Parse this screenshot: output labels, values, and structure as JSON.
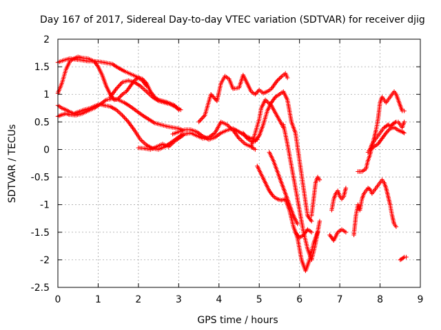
{
  "chart_data": {
    "type": "scatter",
    "title": "Day 167 of 2017, Sidereal Day-to-day VTEC variation (SDTVAR) for receiver djig",
    "xlabel": "GPS time / hours",
    "ylabel": "SDTVAR / TECUs",
    "xlim": [
      0,
      9
    ],
    "ylim": [
      -2.5,
      2
    ],
    "xticks": [
      0,
      1,
      2,
      3,
      4,
      5,
      6,
      7,
      8,
      9
    ],
    "yticks": [
      -2.5,
      -2,
      -1.5,
      -1,
      -0.5,
      0,
      0.5,
      1,
      1.5,
      2
    ],
    "grid": true,
    "marker": "+",
    "color": "#ff0000",
    "series": [
      {
        "x": [
          0.0,
          0.15,
          0.3,
          0.45,
          0.6,
          0.75,
          0.9,
          1.05,
          1.2,
          1.35,
          1.5,
          1.65,
          1.8,
          1.95,
          2.1,
          2.2,
          2.3,
          2.4,
          2.5,
          2.6,
          2.7,
          2.8,
          2.9,
          3.0
        ],
        "y": [
          1.58,
          1.62,
          1.65,
          1.63,
          1.62,
          1.6,
          1.6,
          1.59,
          1.57,
          1.55,
          1.48,
          1.42,
          1.37,
          1.32,
          1.28,
          1.2,
          1.05,
          0.95,
          0.9,
          0.88,
          0.86,
          0.83,
          0.8,
          0.72
        ]
      },
      {
        "x": [
          0.0,
          0.1,
          0.2,
          0.3,
          0.4,
          0.5,
          0.6,
          0.75,
          0.9,
          1.0,
          1.1,
          1.2,
          1.3,
          1.4,
          1.5,
          1.6,
          1.7,
          1.8,
          1.9,
          2.0,
          2.1,
          2.2
        ],
        "y": [
          1.02,
          1.2,
          1.45,
          1.6,
          1.65,
          1.68,
          1.66,
          1.65,
          1.6,
          1.5,
          1.35,
          1.15,
          1.0,
          0.9,
          0.92,
          1.0,
          1.05,
          1.15,
          1.25,
          1.3,
          1.25,
          1.15
        ]
      },
      {
        "x": [
          0.0,
          0.1,
          0.2,
          0.3,
          0.4,
          0.5,
          0.65,
          0.8,
          0.95,
          1.05,
          1.15,
          1.3,
          1.45,
          1.6,
          1.75,
          1.9,
          2.05,
          2.2,
          2.35,
          2.5,
          2.65,
          2.8,
          2.95,
          3.1
        ],
        "y": [
          0.8,
          0.75,
          0.72,
          0.68,
          0.65,
          0.68,
          0.72,
          0.75,
          0.8,
          0.82,
          0.8,
          0.78,
          0.72,
          0.62,
          0.5,
          0.35,
          0.18,
          0.08,
          0.02,
          0.0,
          0.05,
          0.12,
          0.2,
          0.28
        ]
      },
      {
        "x": [
          0.0,
          0.1,
          0.2,
          0.3,
          0.45,
          0.6,
          0.75,
          0.9,
          1.05,
          1.2,
          1.35,
          1.5,
          1.65,
          1.8,
          1.95,
          2.1,
          2.25,
          2.4,
          2.55,
          2.7,
          2.85,
          3.0,
          3.1
        ],
        "y": [
          0.6,
          0.63,
          0.65,
          0.63,
          0.62,
          0.65,
          0.7,
          0.75,
          0.82,
          0.9,
          0.92,
          0.9,
          0.85,
          0.78,
          0.7,
          0.62,
          0.55,
          0.48,
          0.45,
          0.42,
          0.4,
          0.38,
          0.35
        ]
      },
      {
        "x": [
          1.3,
          1.45,
          1.6,
          1.75,
          1.9,
          2.05,
          2.2,
          2.35,
          2.5,
          2.65,
          2.8,
          2.95,
          3.05
        ],
        "y": [
          0.95,
          1.1,
          1.22,
          1.25,
          1.22,
          1.15,
          1.05,
          0.95,
          0.88,
          0.85,
          0.82,
          0.76,
          0.72
        ]
      },
      {
        "x": [
          2.0,
          2.15,
          2.3,
          2.45,
          2.6,
          2.75,
          2.9,
          3.0,
          3.15,
          3.3,
          3.45,
          3.6,
          3.75,
          3.9,
          4.05,
          4.2,
          4.35,
          4.5,
          4.65,
          4.8,
          4.9
        ],
        "y": [
          0.03,
          0.02,
          0.0,
          0.05,
          0.1,
          0.05,
          0.15,
          0.2,
          0.28,
          0.3,
          0.25,
          0.2,
          0.22,
          0.3,
          0.5,
          0.45,
          0.35,
          0.2,
          0.1,
          0.05,
          0.0
        ]
      },
      {
        "x": [
          2.85,
          3.0,
          3.15,
          3.3,
          3.45,
          3.6,
          3.75,
          3.9,
          4.05,
          4.2,
          4.35,
          4.5,
          4.65,
          4.8,
          4.95
        ],
        "y": [
          0.28,
          0.32,
          0.36,
          0.36,
          0.32,
          0.24,
          0.18,
          0.22,
          0.3,
          0.35,
          0.38,
          0.32,
          0.25,
          0.2,
          0.18
        ]
      },
      {
        "x": [
          3.5,
          3.65,
          3.8,
          3.95,
          4.05,
          4.15,
          4.25,
          4.35,
          4.5,
          4.6,
          4.7,
          4.8,
          4.9,
          5.0,
          5.1,
          5.2,
          5.3,
          5.45,
          5.55,
          5.65,
          5.7
        ],
        "y": [
          0.5,
          0.62,
          1.0,
          0.88,
          1.2,
          1.33,
          1.28,
          1.1,
          1.12,
          1.35,
          1.2,
          1.05,
          1.0,
          1.08,
          1.02,
          1.05,
          1.1,
          1.25,
          1.32,
          1.38,
          1.3
        ]
      },
      {
        "x": [
          4.6,
          4.7,
          4.8,
          4.9,
          5.0,
          5.1,
          5.2,
          5.3,
          5.4,
          5.5,
          5.6,
          5.7,
          5.8,
          5.9,
          6.0,
          6.1,
          6.2,
          6.3
        ],
        "y": [
          0.3,
          0.2,
          0.15,
          0.15,
          0.25,
          0.45,
          0.7,
          0.85,
          0.95,
          1.0,
          1.05,
          0.9,
          0.5,
          0.3,
          -0.2,
          -0.7,
          -1.2,
          -1.3
        ]
      },
      {
        "x": [
          4.8,
          4.9,
          5.0,
          5.05,
          5.15,
          5.3,
          5.45,
          5.6
        ],
        "y": [
          0.05,
          0.3,
          0.55,
          0.75,
          0.9,
          0.8,
          0.6,
          0.4
        ]
      },
      {
        "x": [
          4.95,
          5.05,
          5.15,
          5.25,
          5.35,
          5.45,
          5.55,
          5.65,
          5.75,
          5.85,
          5.95,
          6.05,
          6.15,
          6.25,
          6.35,
          6.45
        ],
        "y": [
          -0.3,
          -0.45,
          -0.6,
          -0.75,
          -0.85,
          -0.9,
          -0.92,
          -0.9,
          -1.1,
          -1.4,
          -1.6,
          -2.0,
          -2.2,
          -2.0,
          -1.7,
          -1.5
        ]
      },
      {
        "x": [
          5.25,
          5.35,
          5.45,
          5.55,
          5.65,
          5.75,
          5.85,
          5.95
        ],
        "y": [
          -0.05,
          -0.2,
          -0.4,
          -0.6,
          -0.8,
          -1.0,
          -1.2,
          -1.35
        ]
      },
      {
        "x": [
          5.6,
          5.7,
          5.8,
          5.9,
          6.0,
          6.1,
          6.2,
          6.3,
          6.4,
          6.5
        ],
        "y": [
          0.45,
          0.1,
          -0.3,
          -0.7,
          -1.1,
          -1.5,
          -1.8,
          -2.0,
          -1.7,
          -1.3
        ]
      },
      {
        "x": [
          5.9,
          6.0,
          6.1,
          6.2,
          6.3
        ],
        "y": [
          -1.5,
          -1.6,
          -1.55,
          -1.45,
          -1.5
        ]
      },
      {
        "x": [
          6.3,
          6.35,
          6.4,
          6.45,
          6.5
        ],
        "y": [
          -1.2,
          -0.9,
          -0.6,
          -0.5,
          -0.55
        ]
      },
      {
        "x": [
          6.75,
          6.85,
          6.95,
          7.05,
          7.15
        ],
        "y": [
          -1.55,
          -1.65,
          -1.5,
          -1.45,
          -1.5
        ]
      },
      {
        "x": [
          6.8,
          6.85,
          6.9,
          6.95,
          7.0,
          7.05,
          7.1,
          7.15
        ],
        "y": [
          -1.1,
          -0.9,
          -0.8,
          -0.75,
          -0.85,
          -0.9,
          -0.85,
          -0.7
        ]
      },
      {
        "x": [
          7.35,
          7.4,
          7.45,
          7.5,
          7.55,
          7.6,
          7.65,
          7.7,
          7.75,
          7.8,
          7.85,
          7.9,
          7.95,
          8.0,
          8.05,
          8.1,
          8.15,
          8.2,
          8.25,
          8.3,
          8.35,
          8.4
        ],
        "y": [
          -1.55,
          -1.2,
          -1.0,
          -1.1,
          -0.9,
          -0.8,
          -0.75,
          -0.7,
          -0.72,
          -0.8,
          -0.75,
          -0.7,
          -0.65,
          -0.6,
          -0.55,
          -0.6,
          -0.7,
          -0.85,
          -1.0,
          -1.2,
          -1.35,
          -1.4
        ]
      },
      {
        "x": [
          7.45,
          7.55,
          7.65,
          7.7,
          7.75,
          7.8,
          7.85,
          7.9,
          7.95,
          8.0,
          8.05,
          8.1,
          8.15,
          8.2,
          8.25,
          8.3,
          8.35,
          8.4,
          8.45,
          8.5,
          8.55,
          8.6
        ],
        "y": [
          -0.4,
          -0.4,
          -0.35,
          -0.2,
          -0.1,
          0.05,
          0.2,
          0.35,
          0.55,
          0.85,
          0.95,
          0.9,
          0.85,
          0.9,
          0.95,
          1.0,
          1.05,
          1.0,
          0.9,
          0.8,
          0.7,
          0.7
        ]
      },
      {
        "x": [
          7.7,
          7.75,
          7.8,
          7.85,
          7.9,
          7.95,
          8.0,
          8.05,
          8.1,
          8.15,
          8.2,
          8.25,
          8.3,
          8.35,
          8.4,
          8.45,
          8.5,
          8.55,
          8.6
        ],
        "y": [
          -0.05,
          0.0,
          0.1,
          0.15,
          0.2,
          0.25,
          0.3,
          0.35,
          0.4,
          0.42,
          0.45,
          0.42,
          0.45,
          0.48,
          0.5,
          0.5,
          0.45,
          0.4,
          0.5
        ]
      },
      {
        "x": [
          7.75,
          7.85,
          7.95,
          8.05,
          8.15,
          8.25,
          8.35,
          8.45,
          8.55,
          8.6
        ],
        "y": [
          0.0,
          0.05,
          0.1,
          0.2,
          0.3,
          0.38,
          0.4,
          0.35,
          0.32,
          0.3
        ]
      },
      {
        "x": [
          8.5,
          8.55,
          8.6,
          8.65
        ],
        "y": [
          -2.0,
          -1.98,
          -1.95,
          -1.95
        ]
      }
    ]
  }
}
